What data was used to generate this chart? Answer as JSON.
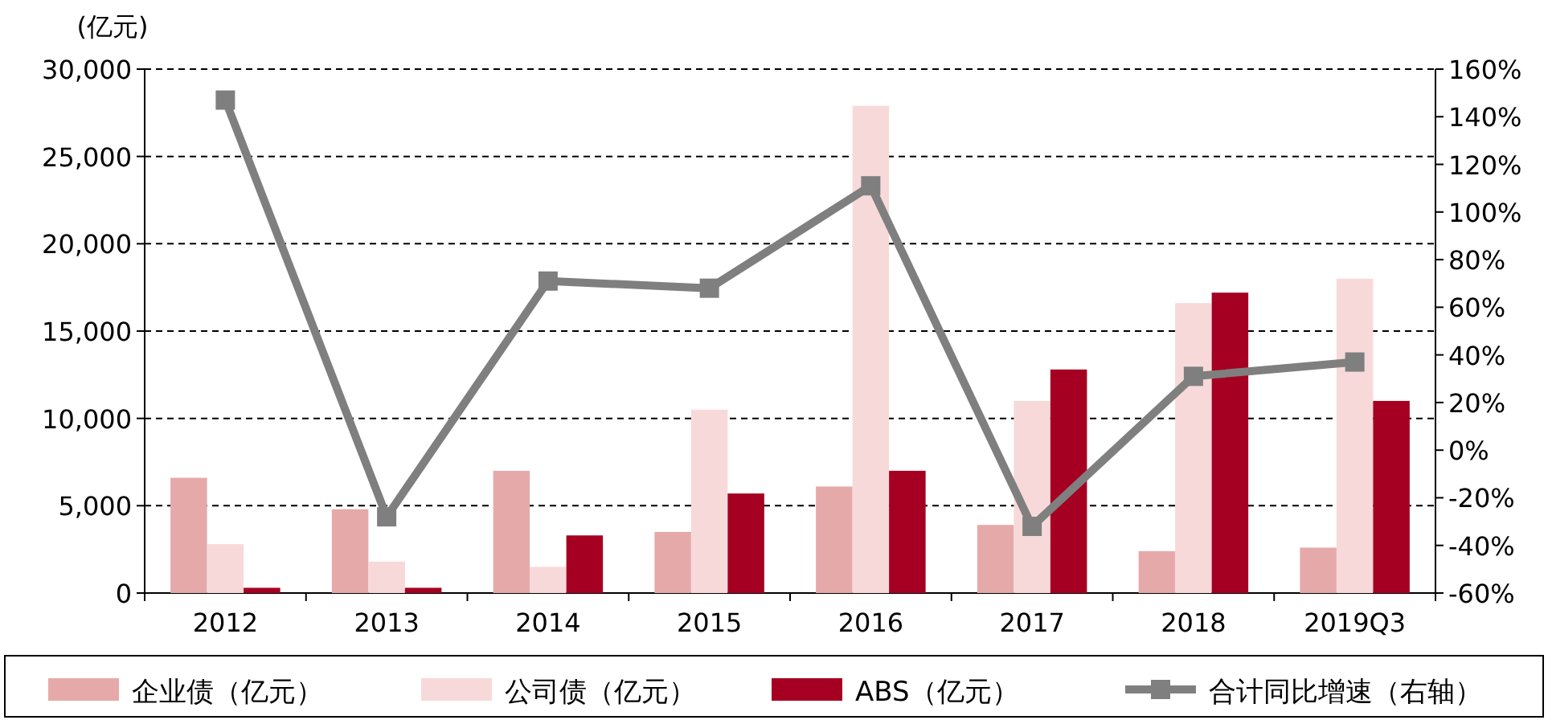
{
  "chart_data": {
    "type": "bar",
    "ylabel": "(亿元)",
    "categories": [
      "2012",
      "2013",
      "2014",
      "2015",
      "2016",
      "2017",
      "2018",
      "2019Q3"
    ],
    "series": [
      {
        "name": "企业债（亿元）",
        "color": "#e6a9a9",
        "values": [
          6600,
          4800,
          7000,
          3500,
          6100,
          3900,
          2400,
          2600
        ]
      },
      {
        "name": "公司债（亿元）",
        "color": "#f8d9d9",
        "values": [
          2800,
          1800,
          1500,
          10500,
          27900,
          11000,
          16600,
          18000
        ]
      },
      {
        "name": "ABS（亿元）",
        "color": "#a50021",
        "values": [
          300,
          300,
          3300,
          5700,
          7000,
          12800,
          17200,
          11000
        ]
      },
      {
        "name": "合计同比增速（右轴）",
        "type": "line",
        "axis": "y2",
        "color": "#7f7f7f",
        "marker": "square",
        "values": [
          147,
          -28,
          71,
          68,
          111,
          -32,
          31,
          37
        ]
      }
    ],
    "ylim": [
      0,
      30000
    ],
    "yticks": [
      0,
      {
        "value": 5000,
        "label": "5,000"
      },
      {
        "value": 10000,
        "label": "10,000"
      },
      {
        "value": 15000,
        "label": "15,000"
      },
      {
        "value": 20000,
        "label": "20,000"
      },
      {
        "value": 25000,
        "label": "25,000"
      },
      {
        "value": 30000,
        "label": "30,000"
      }
    ],
    "y2lim": [
      -60,
      160
    ],
    "y2ticks": [
      {
        "value": -60,
        "label": "-60%"
      },
      {
        "value": -40,
        "label": "-40%"
      },
      {
        "value": -20,
        "label": "-20%"
      },
      {
        "value": 0,
        "label": "0%"
      },
      {
        "value": 20,
        "label": "20%"
      },
      {
        "value": 40,
        "label": "40%"
      },
      {
        "value": 60,
        "label": "60%"
      },
      {
        "value": 80,
        "label": "80%"
      },
      {
        "value": 100,
        "label": "100%"
      },
      {
        "value": 120,
        "label": "120%"
      },
      {
        "value": 140,
        "label": "140%"
      },
      {
        "value": 160,
        "label": "160%"
      }
    ],
    "grid": "y",
    "legend": "bottom"
  }
}
